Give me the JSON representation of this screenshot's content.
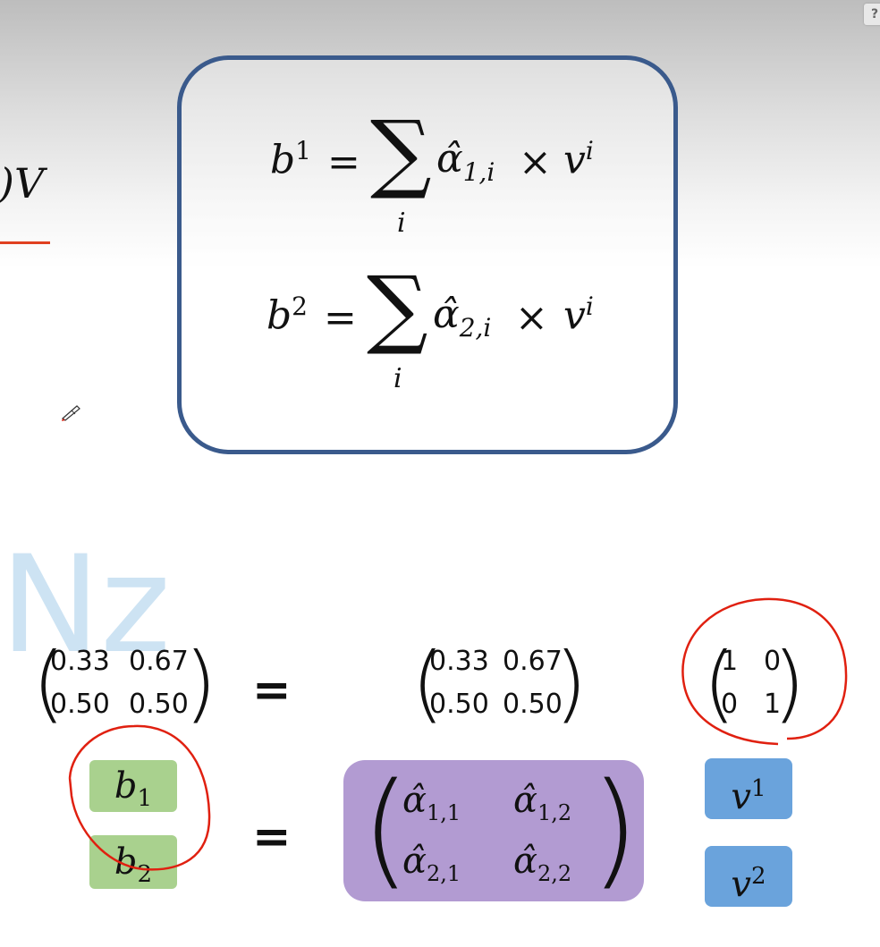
{
  "clipped_formula": ")V",
  "formula_box": {
    "eq1": {
      "lhs": "b",
      "lhs_sup": "1",
      "equals": "=",
      "sub": "i",
      "alpha_sub": "1,i",
      "times": "×",
      "v": "v",
      "v_sup": "i"
    },
    "eq2": {
      "lhs": "b",
      "lhs_sup": "2",
      "equals": "=",
      "sub": "i",
      "alpha_sub": "2,i",
      "times": "×",
      "v": "v",
      "v_sup": "i"
    }
  },
  "watermark": "Nz",
  "matrix_left": {
    "r1c1": "0.33",
    "r1c2": "0.67",
    "r2c1": "0.50",
    "r2c2": "0.50"
  },
  "matrix_mid": {
    "r1c1": "0.33",
    "r1c2": "0.67",
    "r2c1": "0.50",
    "r2c2": "0.50"
  },
  "matrix_right": {
    "r1c1": "1",
    "r1c2": "0",
    "r2c1": "0",
    "r2c2": "1"
  },
  "equals": "=",
  "b_boxes": {
    "b1": "b",
    "b1_sub": "1",
    "b2": "b",
    "b2_sub": "2"
  },
  "alpha_matrix": {
    "a11": "1,1",
    "a12": "1,2",
    "a21": "2,1",
    "a22": "2,2"
  },
  "v_boxes": {
    "v1": "v",
    "v1_sup": "1",
    "v2": "v",
    "v2_sup": "2"
  },
  "colors": {
    "box_border": "#3a5a8c",
    "green": "#a9d18e",
    "purple": "#b29bd2",
    "blue": "#6aa3dc",
    "annotation": "#e02010"
  }
}
